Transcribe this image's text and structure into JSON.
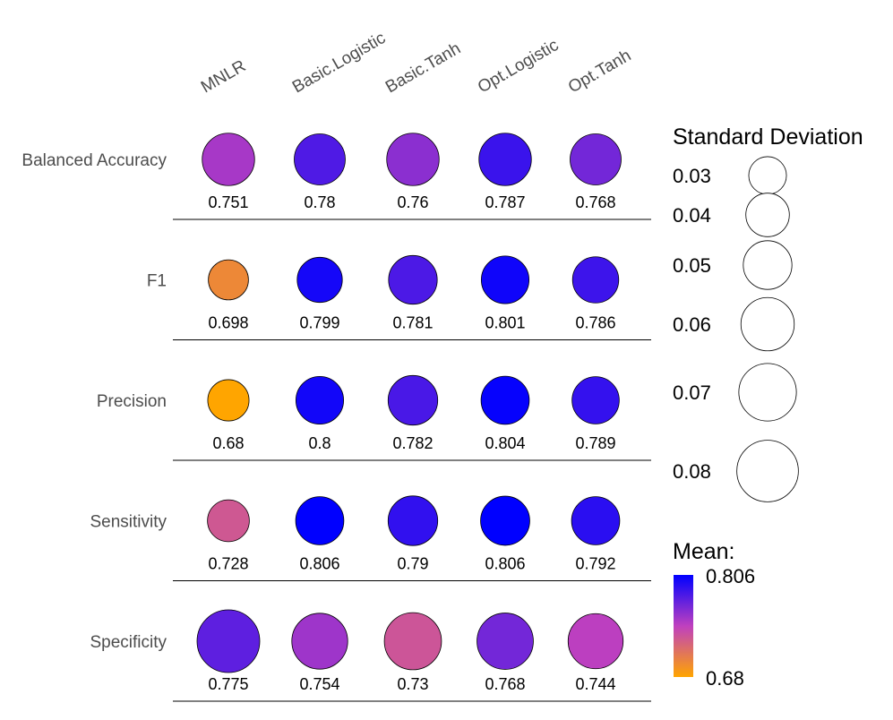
{
  "chart_data": {
    "type": "bubble-matrix",
    "columns": [
      "MNLR",
      "Basic.Logistic",
      "Basic.Tanh",
      "Opt.Logistic",
      "Opt.Tanh"
    ],
    "rows": [
      {
        "label": "Balanced Accuracy",
        "mean": [
          "0.751",
          "0.78",
          "0.76",
          "0.787",
          "0.768"
        ],
        "sd": [
          0.058,
          0.055,
          0.058,
          0.058,
          0.055
        ]
      },
      {
        "label": "F1",
        "mean": [
          "0.698",
          "0.799",
          "0.781",
          "0.801",
          "0.786"
        ],
        "sd": [
          0.034,
          0.043,
          0.05,
          0.048,
          0.045
        ]
      },
      {
        "label": "Precision",
        "mean": [
          "0.68",
          "0.8",
          "0.782",
          "0.804",
          "0.789"
        ],
        "sd": [
          0.036,
          0.048,
          0.052,
          0.049,
          0.047
        ]
      },
      {
        "label": "Sensitivity",
        "mean": [
          "0.728",
          "0.806",
          "0.79",
          "0.806",
          "0.792"
        ],
        "sd": [
          0.037,
          0.049,
          0.052,
          0.051,
          0.049
        ]
      },
      {
        "label": "Specificity",
        "mean": [
          "0.775",
          "0.754",
          "0.73",
          "0.768",
          "0.744"
        ],
        "sd": [
          0.083,
          0.066,
          0.069,
          0.067,
          0.064
        ]
      }
    ],
    "size_legend": {
      "title": "Standard Deviation",
      "breaks": [
        "0.03",
        "0.04",
        "0.05",
        "0.06",
        "0.07",
        "0.08"
      ]
    },
    "color_legend": {
      "title": "Mean:",
      "max_label": "0.806",
      "min_label": "0.68",
      "min": 0.68,
      "max": 0.806
    },
    "colors": {
      "low": "#ffa500",
      "mid": "#bf40bf",
      "high": "#0000ff",
      "rule": "#000000"
    }
  }
}
